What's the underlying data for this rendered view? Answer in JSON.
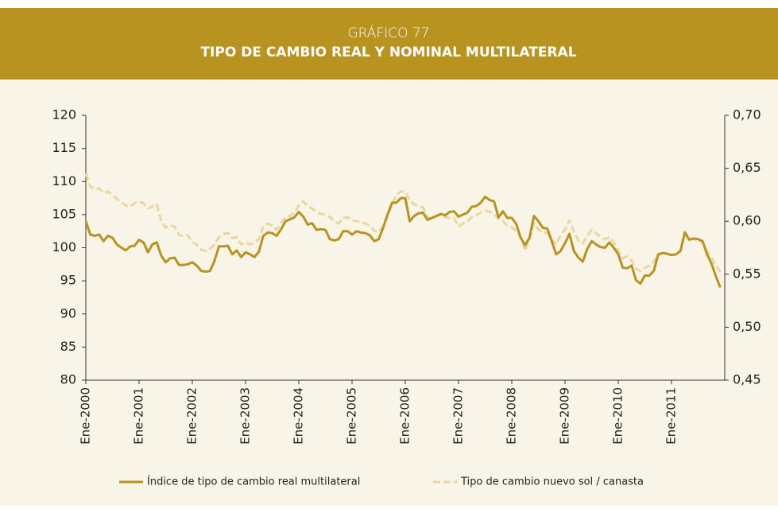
{
  "chart_data": {
    "type": "line",
    "subtitle": "GRÁFICO 77",
    "title": "TIPO DE CAMBIO REAL Y NOMINAL MULTILATERAL",
    "categories": [
      "Ene-2000",
      null,
      null,
      null,
      null,
      null,
      null,
      null,
      null,
      null,
      null,
      null,
      "Ene-2001",
      null,
      null,
      null,
      null,
      null,
      null,
      null,
      null,
      null,
      null,
      null,
      "Ene-2002",
      null,
      null,
      null,
      null,
      null,
      null,
      null,
      null,
      null,
      null,
      null,
      "Ene-2003",
      null,
      null,
      null,
      null,
      null,
      null,
      null,
      null,
      null,
      null,
      null,
      "Ene-2004",
      null,
      null,
      null,
      null,
      null,
      null,
      null,
      null,
      null,
      null,
      null,
      "Ene-2005",
      null,
      null,
      null,
      null,
      null,
      null,
      null,
      null,
      null,
      null,
      null,
      "Ene-2006",
      null,
      null,
      null,
      null,
      null,
      null,
      null,
      null,
      null,
      null,
      null,
      "Ene-2007",
      null,
      null,
      null,
      null,
      null,
      null,
      null,
      null,
      null,
      null,
      null,
      "Ene-2008",
      null,
      null,
      null,
      null,
      null,
      null,
      null,
      null,
      null,
      null,
      null,
      "Ene-2009",
      null,
      null,
      null,
      null,
      null,
      null,
      null,
      null,
      null,
      null,
      null,
      "Ene-2010",
      null,
      null,
      null,
      null,
      null,
      null,
      null,
      null,
      null,
      null,
      null,
      "Ene-2011",
      null,
      null,
      null,
      null,
      null,
      null,
      null,
      null,
      null,
      null,
      null
    ],
    "series": [
      {
        "name": "Índice de tipo de cambio real multilateral",
        "color": "#b8931f",
        "axis": "y",
        "values": [
          104,
          102,
          101.8,
          102,
          101,
          101.8,
          101.5,
          100.5,
          100,
          99.6,
          100.2,
          100.3,
          101.2,
          100.8,
          99.3,
          100.5,
          100.8,
          98.8,
          97.8,
          98.4,
          98.5,
          97.4,
          97.4,
          97.5,
          97.8,
          97.3,
          96.5,
          96.4,
          96.5,
          98,
          100.2,
          100.2,
          100.3,
          99,
          99.6,
          98.6,
          99.3,
          99,
          98.6,
          99.4,
          101.8,
          102.3,
          102.2,
          101.8,
          102.8,
          104,
          104.3,
          104.6,
          105.4,
          104.7,
          103.5,
          103.7,
          102.7,
          102.8,
          102.7,
          101.3,
          101.1,
          101.3,
          102.5,
          102.5,
          102,
          102.5,
          102.3,
          102.2,
          101.9,
          101,
          101.3,
          103,
          105,
          106.8,
          106.8,
          107.5,
          107.5,
          104,
          104.8,
          105.2,
          105.3,
          104.2,
          104.5,
          104.8,
          105.1,
          104.9,
          105.4,
          105.5,
          104.7,
          105,
          105.3,
          106.2,
          106.3,
          106.8,
          107.7,
          107.2,
          107,
          104.6,
          105.5,
          104.5,
          104.5,
          103.6,
          101.5,
          100.4,
          101.5,
          104.8,
          104,
          103,
          102.9,
          101,
          99,
          99.5,
          100.7,
          102.1,
          99.5,
          98.5,
          97.9,
          99.8,
          101,
          100.5,
          100.1,
          100,
          100.8,
          100,
          99,
          97,
          96.9,
          97.3,
          95.1,
          94.6,
          95.8,
          95.8,
          96.5,
          99,
          99.2,
          99.1,
          98.9,
          99,
          99.5,
          102.3,
          101.2,
          101.4,
          101.3,
          101,
          99,
          97.6,
          95.7,
          94
        ]
      },
      {
        "name": "Tipo de cambio nuevo sol / canasta",
        "color": "#e8d7a0",
        "axis": "y2",
        "dashed": true,
        "values": [
          0.645,
          0.633,
          0.63,
          0.631,
          0.627,
          0.628,
          0.625,
          0.621,
          0.618,
          0.615,
          0.614,
          0.617,
          0.619,
          0.617,
          0.612,
          0.614,
          0.616,
          0.6,
          0.594,
          0.596,
          0.595,
          0.587,
          0.586,
          0.587,
          0.58,
          0.578,
          0.573,
          0.572,
          0.574,
          0.578,
          0.585,
          0.588,
          0.589,
          0.584,
          0.585,
          0.578,
          0.58,
          0.578,
          0.58,
          0.583,
          0.595,
          0.598,
          0.596,
          0.592,
          0.598,
          0.604,
          0.605,
          0.608,
          0.615,
          0.619,
          0.614,
          0.612,
          0.609,
          0.607,
          0.606,
          0.604,
          0.6,
          0.598,
          0.603,
          0.604,
          0.601,
          0.6,
          0.599,
          0.598,
          0.596,
          0.591,
          0.59,
          0.595,
          0.605,
          0.615,
          0.625,
          0.628,
          0.628,
          0.62,
          0.616,
          0.615,
          0.613,
          0.604,
          0.602,
          0.605,
          0.606,
          0.604,
          0.603,
          0.603,
          0.595,
          0.598,
          0.6,
          0.604,
          0.606,
          0.608,
          0.61,
          0.609,
          0.607,
          0.602,
          0.6,
          0.596,
          0.594,
          0.591,
          0.585,
          0.572,
          0.583,
          0.598,
          0.592,
          0.59,
          0.589,
          0.583,
          0.578,
          0.587,
          0.592,
          0.601,
          0.59,
          0.582,
          0.579,
          0.586,
          0.592,
          0.589,
          0.585,
          0.583,
          0.585,
          0.58,
          0.573,
          0.565,
          0.567,
          0.563,
          0.555,
          0.553,
          0.556,
          0.558,
          0.562,
          0.568,
          0.57,
          0.569,
          0.568,
          0.569,
          0.572,
          0.59,
          0.584,
          0.583,
          0.582,
          0.58,
          0.572,
          0.566,
          0.558,
          0.552
        ]
      }
    ],
    "ylim": [
      80,
      120
    ],
    "yticks": [
      80,
      85,
      90,
      95,
      100,
      105,
      110,
      115,
      120
    ],
    "y2lim": [
      0.45,
      0.7
    ],
    "y2ticks": [
      {
        "value": 0.45,
        "label": "0,45"
      },
      {
        "value": 0.5,
        "label": "0,50"
      },
      {
        "value": 0.55,
        "label": "0,55"
      },
      {
        "value": 0.6,
        "label": "0,60"
      },
      {
        "value": 0.65,
        "label": "0,65"
      },
      {
        "value": 0.7,
        "label": "0,70"
      }
    ],
    "legend": "bottom",
    "grid": false
  }
}
